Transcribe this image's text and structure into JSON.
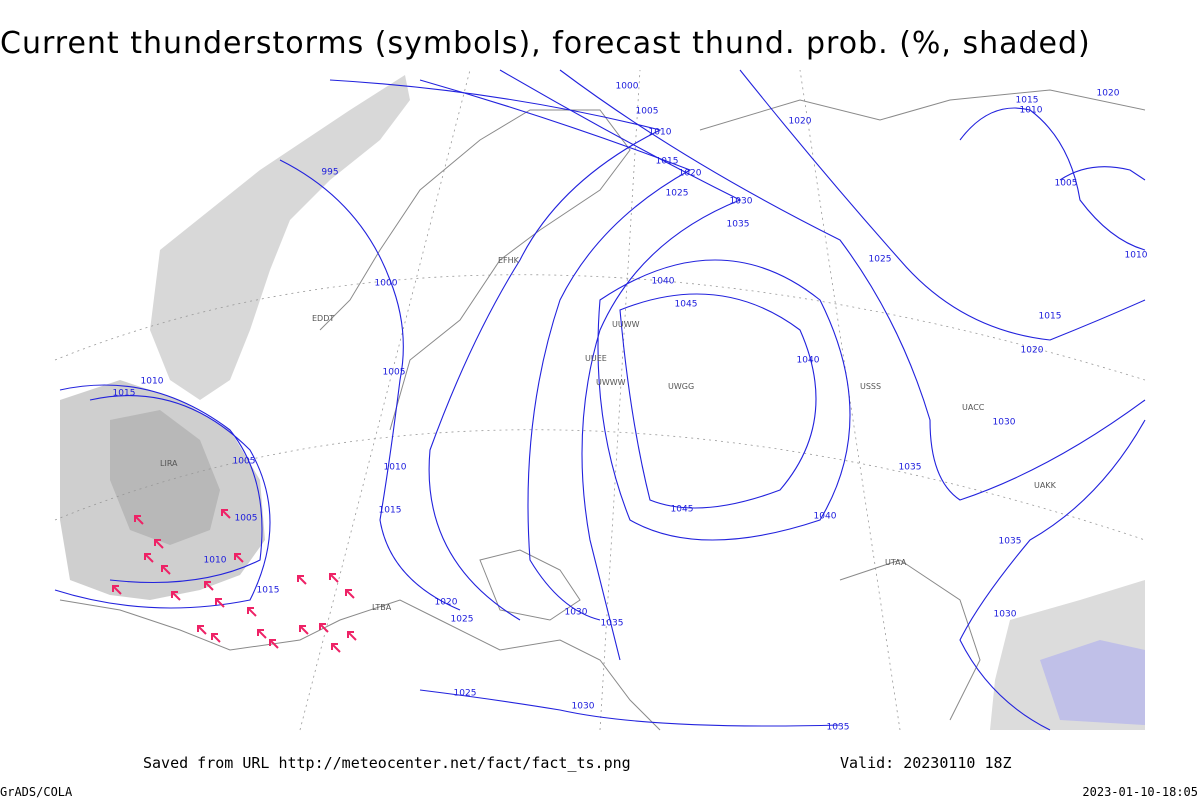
{
  "header": {
    "title": "Current thunderstorms (symbols), forecast thund. prob. (%, shaded)"
  },
  "footer": {
    "saved": "Saved from URL http://meteocenter.net/fact/fact_ts.png",
    "valid": "Valid: 20230110 18Z",
    "software": "GrADS/COLA",
    "timestamp": "2023-01-10-18:05"
  },
  "isobar_labels": [
    "1000",
    "1005",
    "1010",
    "1015",
    "1020",
    "1025",
    "1030",
    "1035",
    "1040",
    "1045",
    "995",
    "1000",
    "1005",
    "1010",
    "1015",
    "1005",
    "1005",
    "1010",
    "1015",
    "1010",
    "1015",
    "1020",
    "1025",
    "1030",
    "1035",
    "1040",
    "1045",
    "1040",
    "1020",
    "1025",
    "1030",
    "1035",
    "1035",
    "1030",
    "1015",
    "1020",
    "1010",
    "1005",
    "1010",
    "1015",
    "1020",
    "1025",
    "1030",
    "1035"
  ],
  "stations": [
    "EFHK",
    "LIRA",
    "UUEE",
    "UWWW",
    "LTBA",
    "EDDT",
    "UUWW",
    "UWGG",
    "USSS",
    "UACC",
    "UAKK",
    "UTAA"
  ]
}
